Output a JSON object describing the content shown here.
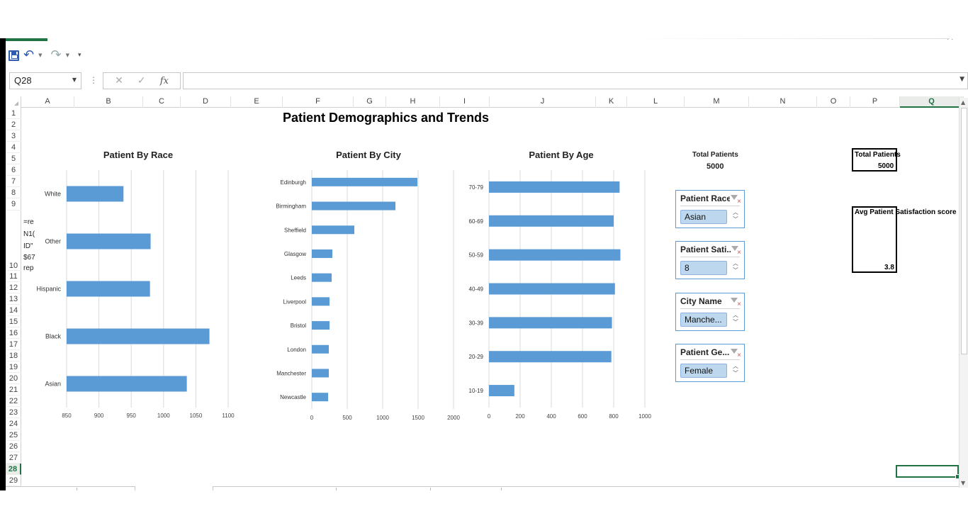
{
  "name_box": {
    "value": "Q28"
  },
  "formula_bar": {
    "cancel_glyph": "✕",
    "enter_glyph": "✓",
    "fx_glyph": "fx",
    "value": ""
  },
  "columns": [
    "A",
    "B",
    "C",
    "D",
    "E",
    "F",
    "G",
    "H",
    "I",
    "J",
    "K",
    "L",
    "M",
    "N",
    "O",
    "P",
    "Q"
  ],
  "active_column": "Q",
  "rows": [
    "1",
    "2",
    "3",
    "4",
    "5",
    "6",
    "7",
    "8",
    "9",
    "10",
    "11",
    "12",
    "13",
    "14",
    "15",
    "16",
    "17",
    "18",
    "19",
    "20",
    "21",
    "22",
    "23",
    "24",
    "25",
    "26",
    "27",
    "28",
    "29"
  ],
  "active_row": "28",
  "cell_fragments": [
    "=re",
    "N1(",
    "ID\"",
    "$67",
    "rep"
  ],
  "title": "Patient Demographics and Trends",
  "chart_data": [
    {
      "type": "bar",
      "title": "Patient By Race",
      "categories": [
        "White",
        "Other",
        "Hispanic",
        "Black",
        "Asian"
      ],
      "values": [
        938,
        980,
        979,
        1071,
        1036
      ],
      "xlim": [
        850,
        1100
      ],
      "xticks": [
        "850",
        "900",
        "950",
        "1000",
        "1050",
        "1100"
      ],
      "grid": true,
      "color": "#5b9bd5"
    },
    {
      "type": "bar",
      "title": "Patient By City",
      "categories": [
        "Edinburgh",
        "Birmingham",
        "Sheffield",
        "Glasgow",
        "Leeds",
        "Liverpool",
        "Bristol",
        "London",
        "Manchester",
        "Newcastle"
      ],
      "values": [
        1490,
        1180,
        600,
        290,
        280,
        250,
        250,
        240,
        240,
        230
      ],
      "xlim": [
        0,
        2000
      ],
      "xticks": [
        "0",
        "500",
        "1000",
        "1500",
        "2000"
      ],
      "grid": true,
      "color": "#5b9bd5"
    },
    {
      "type": "bar",
      "title": "Patient By Age",
      "categories": [
        "70-79",
        "60-69",
        "50-59",
        "40-49",
        "30-39",
        "20-29",
        "10-19"
      ],
      "values": [
        838,
        800,
        843,
        808,
        789,
        785,
        163
      ],
      "xlim": [
        0,
        1000
      ],
      "xticks": [
        "0",
        "200",
        "400",
        "600",
        "800",
        "1000"
      ],
      "grid": true,
      "color": "#5b9bd5"
    }
  ],
  "total_patients": {
    "label": "Total Patients",
    "value": "5000"
  },
  "kpi_boxes": {
    "total_label": "Total Patients",
    "total_value": "5000",
    "avg_label": "Avg Patient Satisfaction score",
    "avg_value": "3.8"
  },
  "slicers": [
    {
      "title": "Patient Race",
      "selected": "Asian"
    },
    {
      "title": "Patient Sati...",
      "selected": "8"
    },
    {
      "title": "City Name",
      "selected": "Manche..."
    },
    {
      "title": "Patient Ge...",
      "selected": "Female"
    }
  ],
  "colors": {
    "accent": "#217346",
    "bar": "#5b9bd5",
    "slicer_selected": "#bdd7ee",
    "slicer_border": "#5b9bd5"
  }
}
